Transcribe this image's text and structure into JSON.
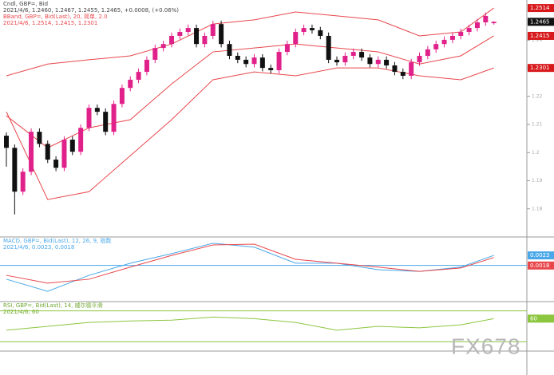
{
  "chart_data": [
    {
      "type": "candlestick",
      "title": "Cndl, GBP=, Bid",
      "subtitle": "2021/4/6, 1.2460, 1.2467, 1.2455, 1.2465, +0.0008, (+0.06%)",
      "color_up": "#e0218a",
      "color_down": "#111111",
      "candles": [
        [
          1.206,
          1.2072,
          1.195,
          1.2017
        ],
        [
          1.2017,
          1.2029,
          1.178,
          1.1861
        ],
        [
          1.1861,
          1.1944,
          1.1849,
          1.1932
        ],
        [
          1.1932,
          1.2086,
          1.192,
          1.2074
        ],
        [
          1.2074,
          1.2086,
          1.2019,
          1.2031
        ],
        [
          1.2031,
          1.2043,
          1.1963,
          1.1975
        ],
        [
          1.1975,
          1.1987,
          1.1934,
          1.1946
        ],
        [
          1.1946,
          1.2058,
          1.1934,
          1.2046
        ],
        [
          1.2046,
          1.2058,
          1.1991,
          1.2003
        ],
        [
          1.2003,
          1.21,
          1.1991,
          1.2088
        ],
        [
          1.2088,
          1.2171,
          1.2076,
          1.2159
        ],
        [
          1.2159,
          1.2171,
          1.2133,
          1.2145
        ],
        [
          1.2145,
          1.2157,
          1.2062,
          1.2074
        ],
        [
          1.2074,
          1.2185,
          1.2062,
          1.2173
        ],
        [
          1.2173,
          1.2242,
          1.2161,
          1.223
        ],
        [
          1.223,
          1.2271,
          1.2218,
          1.2259
        ],
        [
          1.2259,
          1.2299,
          1.2247,
          1.2287
        ],
        [
          1.2287,
          1.2342,
          1.2275,
          1.233
        ],
        [
          1.233,
          1.2384,
          1.2318,
          1.2372
        ],
        [
          1.2372,
          1.2398,
          1.236,
          1.2386
        ],
        [
          1.2386,
          1.2427,
          1.2374,
          1.2415
        ],
        [
          1.2415,
          1.2441,
          1.2403,
          1.2429
        ],
        [
          1.2429,
          1.2455,
          1.2417,
          1.2443
        ],
        [
          1.2443,
          1.2455,
          1.2374,
          1.2386
        ],
        [
          1.2386,
          1.2427,
          1.2374,
          1.2415
        ],
        [
          1.2415,
          1.2469,
          1.2403,
          1.2457
        ],
        [
          1.2457,
          1.2469,
          1.2374,
          1.2386
        ],
        [
          1.2386,
          1.2398,
          1.2332,
          1.2344
        ],
        [
          1.2344,
          1.2356,
          1.2318,
          1.233
        ],
        [
          1.233,
          1.2342,
          1.2303,
          1.2315
        ],
        [
          1.2315,
          1.235,
          1.2303,
          1.2338
        ],
        [
          1.2338,
          1.235,
          1.2289,
          1.2301
        ],
        [
          1.2301,
          1.2313,
          1.2281,
          1.2293
        ],
        [
          1.2293,
          1.237,
          1.2281,
          1.2358
        ],
        [
          1.2358,
          1.2398,
          1.2346,
          1.2386
        ],
        [
          1.2386,
          1.2441,
          1.2374,
          1.2429
        ],
        [
          1.2429,
          1.2455,
          1.2417,
          1.2443
        ],
        [
          1.2443,
          1.2455,
          1.2423,
          1.2435
        ],
        [
          1.2435,
          1.2447,
          1.2403,
          1.2415
        ],
        [
          1.2415,
          1.2427,
          1.2318,
          1.233
        ],
        [
          1.233,
          1.2342,
          1.2309,
          1.2321
        ],
        [
          1.2321,
          1.2356,
          1.2309,
          1.2344
        ],
        [
          1.2344,
          1.237,
          1.2332,
          1.2358
        ],
        [
          1.2358,
          1.237,
          1.2326,
          1.2338
        ],
        [
          1.2338,
          1.235,
          1.2303,
          1.2315
        ],
        [
          1.2315,
          1.2342,
          1.2303,
          1.233
        ],
        [
          1.233,
          1.2342,
          1.2298,
          1.231
        ],
        [
          1.231,
          1.2322,
          1.2275,
          1.2287
        ],
        [
          1.2287,
          1.2299,
          1.2261,
          1.2273
        ],
        [
          1.2273,
          1.2333,
          1.2261,
          1.2321
        ],
        [
          1.2321,
          1.2356,
          1.2309,
          1.2344
        ],
        [
          1.2344,
          1.2379,
          1.2332,
          1.2367
        ],
        [
          1.2367,
          1.2398,
          1.2355,
          1.2386
        ],
        [
          1.2386,
          1.2413,
          1.2374,
          1.2401
        ],
        [
          1.2401,
          1.2427,
          1.2389,
          1.2415
        ],
        [
          1.2415,
          1.2441,
          1.2403,
          1.2429
        ],
        [
          1.2429,
          1.2455,
          1.2417,
          1.2443
        ],
        [
          1.2443,
          1.2475,
          1.2431,
          1.2463
        ],
        [
          1.2463,
          1.2498,
          1.2451,
          1.2486
        ],
        [
          1.246,
          1.2467,
          1.2455,
          1.2465
        ]
      ],
      "bands": {
        "title": "BBand, GBP=, Bid(Last), 20, 简单, 2.0",
        "subtitle": "2021/4/6, 1.2514, 1.2415, 1.2301",
        "x": [
          0,
          5,
          10,
          15,
          20,
          25,
          30,
          35,
          40,
          45,
          50,
          55,
          59
        ],
        "series": [
          {
            "color": "#e8474c",
            "values": [
              1.2273,
              1.2315,
              1.233,
              1.2344,
              1.2386,
              1.2457,
              1.2472,
              1.25,
              1.2486,
              1.2472,
              1.2415,
              1.2429,
              1.2514
            ]
          },
          {
            "color": "#e8474c",
            "values": [
              1.2131,
              1.2017,
              1.2088,
              1.2117,
              1.2244,
              1.2358,
              1.2372,
              1.2386,
              1.2372,
              1.2358,
              1.2315,
              1.2344,
              1.2415
            ]
          },
          {
            "color": "#e8474c",
            "values": [
              1.2145,
              1.1833,
              1.1861,
              1.1989,
              1.2117,
              1.2259,
              1.2287,
              1.2273,
              1.2301,
              1.2301,
              1.2273,
              1.2259,
              1.2301
            ]
          }
        ]
      },
      "ylim": [
        1.17,
        1.25
      ],
      "yticks": [
        1.18,
        1.19,
        1.2,
        1.21,
        1.22,
        1.23,
        1.24
      ]
    },
    {
      "type": "line",
      "title": "MACD, GBP=, Bid(Last), 12, 26, 9, 指数",
      "subtitle": "2021/4/6, 0.0023, 0.0018",
      "x": [
        0,
        5,
        10,
        15,
        20,
        25,
        30,
        35,
        40,
        45,
        50,
        55,
        59
      ],
      "series": [
        {
          "color": "#4aa8e8",
          "values": [
            -0.0032,
            -0.006,
            -0.0023,
            0.0005,
            0.0027,
            0.0051,
            0.0042,
            0.0005,
            0.0005,
            -0.001,
            -0.0014,
            -0.0004,
            0.0023
          ]
        },
        {
          "color": "#e8474c",
          "values": [
            -0.0023,
            -0.0041,
            -0.0032,
            -0.0004,
            0.0023,
            0.0047,
            0.0049,
            0.0014,
            0.0005,
            -0.0004,
            -0.0014,
            -0.0006,
            0.0018
          ]
        }
      ],
      "reference_lines": [
        0
      ],
      "reference_color": "#4aa8e8",
      "ylim": [
        -0.008,
        0.006
      ]
    },
    {
      "type": "line",
      "title": "RSI, GBP=, Bid(Last), 14, 威尔德平滑",
      "subtitle": "2021/4/6, 60",
      "x": [
        0,
        5,
        10,
        15,
        20,
        25,
        30,
        35,
        40,
        45,
        50,
        55,
        59
      ],
      "series": [
        {
          "color": "#8cc63f",
          "values": [
            45,
            50,
            55,
            57,
            58,
            62,
            60,
            55,
            45,
            50,
            48,
            52,
            60
          ]
        }
      ],
      "reference_lines": [
        70,
        30
      ],
      "reference_color": "#8cc63f",
      "ylim": [
        20,
        80
      ]
    }
  ],
  "watermark": "FX678"
}
